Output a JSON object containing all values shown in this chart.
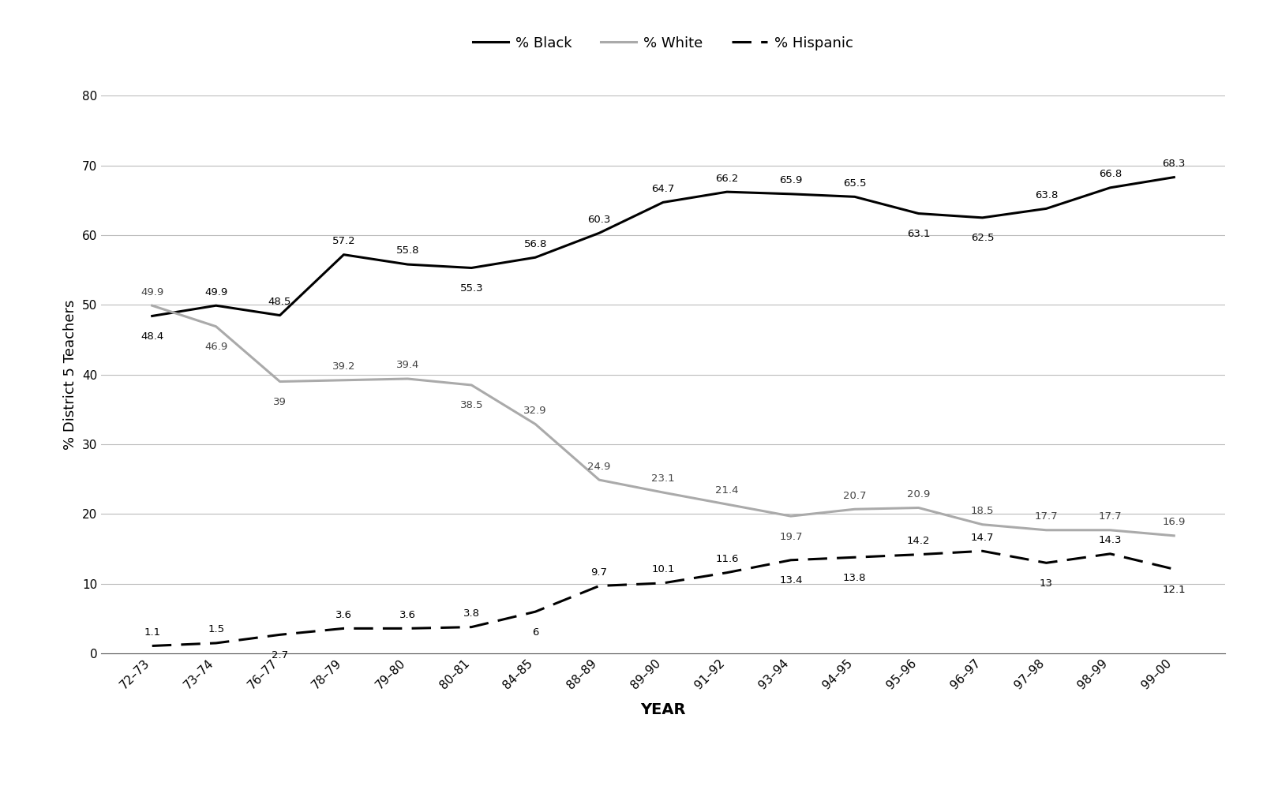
{
  "years": [
    "72–73",
    "73–74",
    "76–77",
    "78–79",
    "79–80",
    "80–81",
    "84–85",
    "88–89",
    "89–90",
    "91–92",
    "93–94",
    "94–95",
    "95–96",
    "96–97",
    "97–98",
    "98–99",
    "99–00"
  ],
  "black": [
    48.4,
    49.9,
    48.5,
    57.2,
    55.8,
    55.3,
    56.8,
    60.3,
    64.7,
    66.2,
    65.9,
    65.5,
    63.1,
    62.5,
    63.8,
    66.8,
    68.3
  ],
  "white": [
    49.9,
    46.9,
    39.0,
    39.2,
    39.4,
    38.5,
    32.9,
    24.9,
    23.1,
    21.4,
    19.7,
    20.7,
    20.9,
    18.5,
    17.7,
    17.7,
    16.9
  ],
  "hispanic": [
    1.1,
    1.5,
    2.7,
    3.6,
    3.6,
    3.8,
    6.0,
    9.7,
    10.1,
    11.6,
    13.4,
    13.8,
    14.2,
    14.7,
    13.0,
    14.3,
    12.1
  ],
  "black_label_display": [
    "48.4",
    "49.9",
    "48.5",
    "57.2",
    "55.8",
    "55.3",
    "56.8",
    "60.3",
    "64.7",
    "66.2",
    "65.9",
    "65.5",
    "63.1",
    "62.5",
    "63.8",
    "66.8",
    "68.3"
  ],
  "white_label_display": [
    "49.9",
    "46.9",
    "39",
    "39.2",
    "39.4",
    "38.5",
    "32.9",
    "24.9",
    "23.1",
    "21.4",
    "19.7",
    "20.7",
    "20.9",
    "18.5",
    "17.7",
    "17.7",
    "16.9"
  ],
  "hisp_label_display": [
    "1.1",
    "1.5",
    "2.7",
    "3.6",
    "3.6",
    "3.8",
    "6",
    "9.7",
    "10.1",
    "11.6",
    "13.4",
    "13.8",
    "14.2",
    "14.7",
    "13",
    "14.3",
    "12.1"
  ],
  "ylabel": "% District 5 Teachers",
  "xlabel": "YEAR",
  "ylim": [
    0,
    80
  ],
  "yticks": [
    0,
    10,
    20,
    30,
    40,
    50,
    60,
    70,
    80
  ],
  "legend_black": "% Black",
  "legend_white": "% White",
  "legend_hispanic": "% Hispanic",
  "black_color": "#000000",
  "white_color": "#aaaaaa",
  "hispanic_color": "#000000",
  "background_color": "#ffffff",
  "grid_color": "#bbbbbb"
}
